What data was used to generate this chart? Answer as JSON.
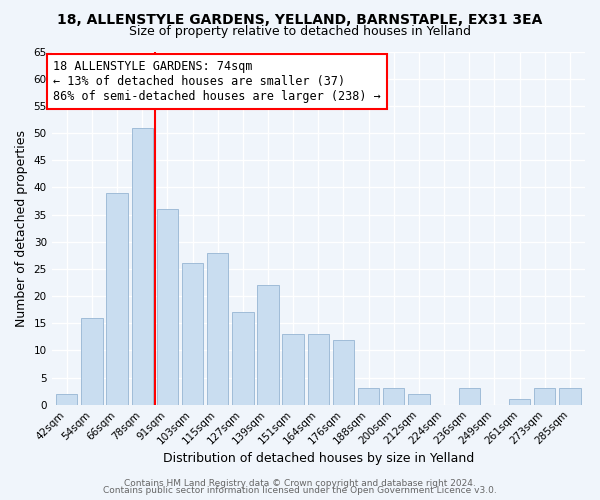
{
  "title": "18, ALLENSTYLE GARDENS, YELLAND, BARNSTAPLE, EX31 3EA",
  "subtitle": "Size of property relative to detached houses in Yelland",
  "xlabel": "Distribution of detached houses by size in Yelland",
  "ylabel": "Number of detached properties",
  "bar_labels": [
    "42sqm",
    "54sqm",
    "66sqm",
    "78sqm",
    "91sqm",
    "103sqm",
    "115sqm",
    "127sqm",
    "139sqm",
    "151sqm",
    "164sqm",
    "176sqm",
    "188sqm",
    "200sqm",
    "212sqm",
    "224sqm",
    "236sqm",
    "249sqm",
    "261sqm",
    "273sqm",
    "285sqm"
  ],
  "bar_values": [
    2,
    16,
    39,
    51,
    36,
    26,
    28,
    17,
    22,
    13,
    13,
    12,
    3,
    3,
    2,
    0,
    3,
    0,
    1,
    3,
    3
  ],
  "bar_color": "#c9ddf0",
  "bar_edge_color": "#a0bcd8",
  "ylim": [
    0,
    65
  ],
  "yticks": [
    0,
    5,
    10,
    15,
    20,
    25,
    30,
    35,
    40,
    45,
    50,
    55,
    60,
    65
  ],
  "vline_x": 3.5,
  "vline_color": "red",
  "annotation_text": "18 ALLENSTYLE GARDENS: 74sqm\n← 13% of detached houses are smaller (37)\n86% of semi-detached houses are larger (238) →",
  "annotation_box_color": "white",
  "annotation_box_edge": "red",
  "footer_line1": "Contains HM Land Registry data © Crown copyright and database right 2024.",
  "footer_line2": "Contains public sector information licensed under the Open Government Licence v3.0.",
  "background_color": "#f0f5fb",
  "grid_color": "white",
  "title_fontsize": 10,
  "subtitle_fontsize": 9,
  "axis_label_fontsize": 9,
  "tick_fontsize": 7.5,
  "annotation_fontsize": 8.5,
  "footer_fontsize": 6.5
}
